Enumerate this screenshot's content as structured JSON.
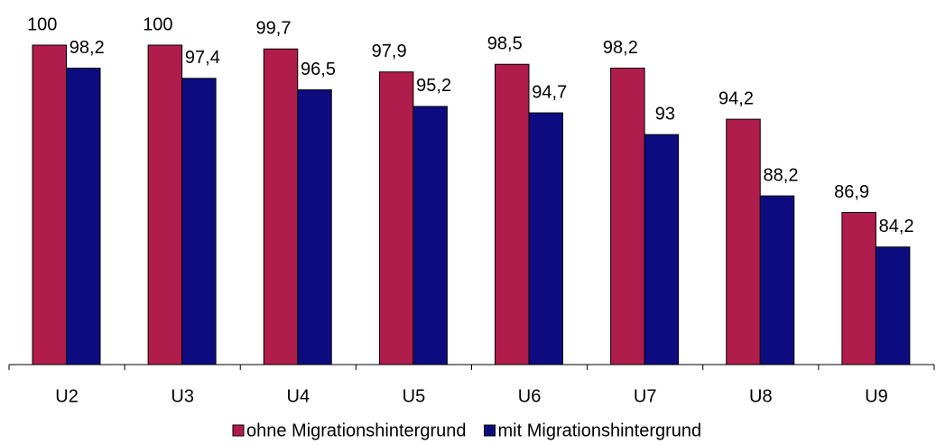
{
  "chart_data": {
    "type": "bar",
    "categories": [
      "U2",
      "U3",
      "U4",
      "U5",
      "U6",
      "U7",
      "U8",
      "U9"
    ],
    "series": [
      {
        "name": "ohne Migrationshintergrund",
        "color": "#b01c4c",
        "values": [
          100,
          100,
          99.7,
          97.9,
          98.5,
          98.2,
          94.2,
          86.9
        ],
        "value_labels": [
          "100",
          "100",
          "99,7",
          "97,9",
          "98,5",
          "98,2",
          "94,2",
          "86,9"
        ]
      },
      {
        "name": "mit Migrationshintergrund",
        "color": "#0c0c80",
        "values": [
          98.2,
          97.4,
          96.5,
          95.2,
          94.7,
          93,
          88.2,
          84.2
        ],
        "value_labels": [
          "98,2",
          "97,4",
          "96,5",
          "95,2",
          "94,7",
          "93",
          "88,2",
          "84,2"
        ]
      }
    ],
    "ylim": [
      75,
      100
    ],
    "legend": "bottom"
  }
}
